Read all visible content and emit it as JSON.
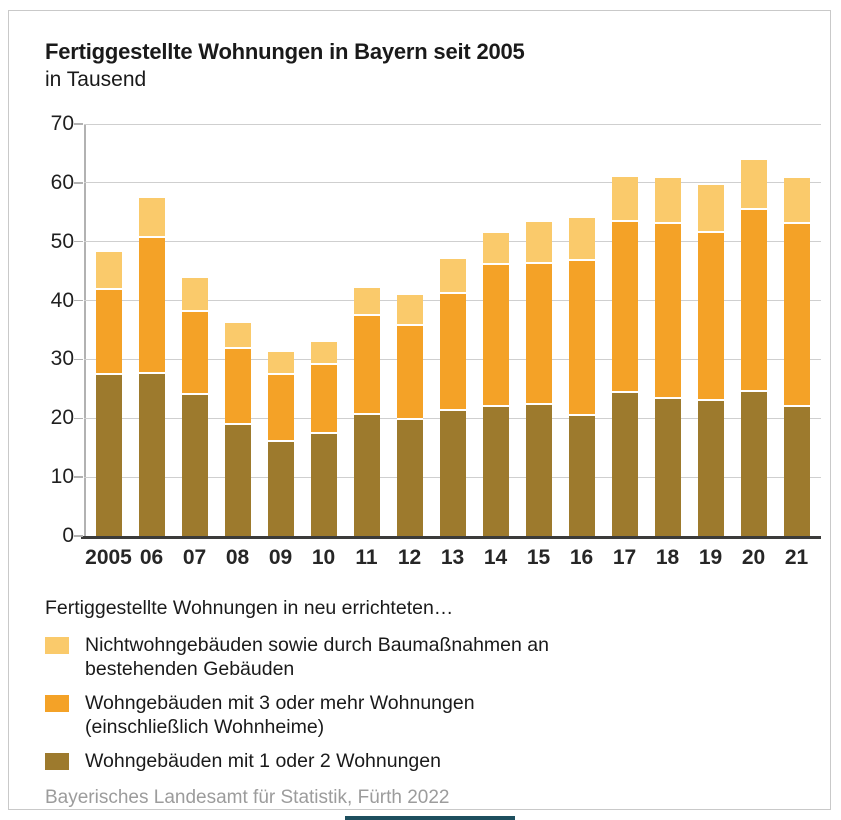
{
  "header": {
    "title": "Fertiggestellte Wohnungen in Bayern seit 2005",
    "subtitle": "in Tausend"
  },
  "chart_data": {
    "type": "bar",
    "stacked": true,
    "title": "Fertiggestellte Wohnungen in Bayern seit 2005",
    "unit_label": "in Tausend",
    "categories": [
      "2005",
      "06",
      "07",
      "08",
      "09",
      "10",
      "11",
      "12",
      "13",
      "14",
      "15",
      "16",
      "17",
      "18",
      "19",
      "20",
      "21"
    ],
    "series": [
      {
        "name": "Wohngebäuden mit 1 oder 2 Wohnungen",
        "color": "#9d7a2d",
        "values": [
          27.3,
          27.5,
          24.0,
          18.8,
          15.9,
          17.4,
          20.5,
          19.7,
          21.2,
          21.9,
          22.3,
          20.4,
          24.3,
          23.3,
          22.9,
          24.5,
          22.0
        ]
      },
      {
        "name": "Wohngebäuden mit 3 oder mehr Wohnungen (einschließlich Wohnheime)",
        "color": "#f4a227",
        "values": [
          14.5,
          23.1,
          14.1,
          13.0,
          11.4,
          11.7,
          16.9,
          15.9,
          19.9,
          24.1,
          24.0,
          26.3,
          29.1,
          29.7,
          28.6,
          30.9,
          31.0
        ]
      },
      {
        "name": "Nichtwohngebäuden sowie durch Baumaßnahmen an bestehenden Gebäuden",
        "color": "#faca6b",
        "values": [
          6.4,
          6.9,
          5.8,
          4.4,
          3.9,
          3.9,
          4.8,
          5.4,
          5.9,
          5.5,
          7.1,
          7.3,
          7.6,
          7.8,
          8.2,
          8.5,
          7.8
        ]
      }
    ],
    "totals": [
      48.2,
      57.5,
      43.9,
      36.2,
      31.2,
      33.0,
      42.2,
      41.0,
      47.0,
      51.5,
      53.4,
      54.0,
      61.0,
      60.8,
      59.7,
      63.9,
      60.8
    ],
    "ylim": [
      0,
      70
    ],
    "yticks": [
      0,
      10,
      20,
      30,
      40,
      50,
      60,
      70
    ],
    "grid": true,
    "legend_position": "bottom"
  },
  "legend": {
    "intro": "Fertiggestellte Wohnungen in neu errichteten…",
    "items": [
      {
        "color": "#faca6b",
        "line1": "Nichtwohngebäuden sowie durch Baumaßnahmen an",
        "line2": "bestehenden Gebäuden"
      },
      {
        "color": "#f4a227",
        "line1": "Wohngebäuden mit 3 oder mehr Wohnungen",
        "line2": "(einschließlich Wohnheime)"
      },
      {
        "color": "#9d7a2d",
        "line1": "Wohngebäuden mit 1 oder 2 Wohnungen",
        "line2": ""
      }
    ]
  },
  "footer": {
    "source": "Bayerisches Landesamt für Statistik, Fürth 2022"
  },
  "colors": {
    "bar_1_2": "#9d7a2d",
    "bar_3plus": "#f4a227",
    "bar_other": "#faca6b",
    "grid": "#cfcfcf",
    "axis": "#3b3b3a",
    "footer_text": "#9c9c9c",
    "bottom_accent": "#1d4f5e"
  }
}
